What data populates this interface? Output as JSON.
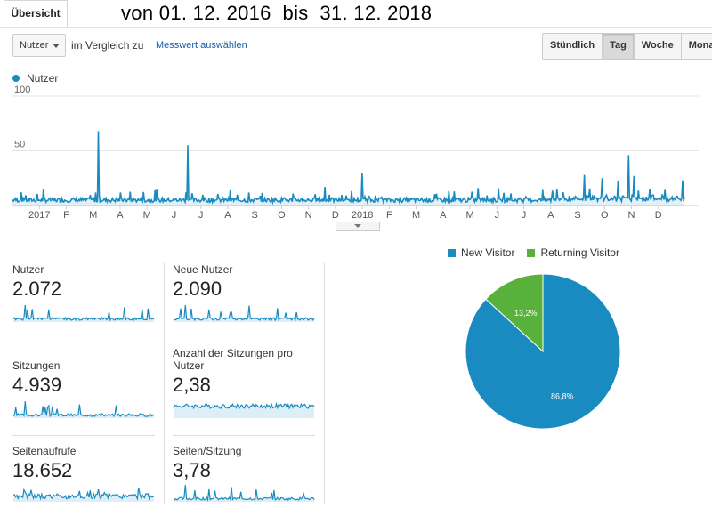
{
  "tab": {
    "label": "Übersicht"
  },
  "range_title": "von 01. 12. 2016  bis  31. 12. 2018",
  "controls": {
    "metric_select": "Nutzer",
    "compare_label": "im Vergleich zu",
    "choose_metric_link": "Messwert auswählen",
    "periods": [
      "Stündlich",
      "Tag",
      "Woche",
      "Monat"
    ],
    "active_period": "Tag"
  },
  "colors": {
    "primary": "#1a8bc1",
    "secondary": "#57b13b"
  },
  "chart_data": [
    {
      "type": "line",
      "series": [
        {
          "name": "Nutzer"
        }
      ],
      "ylim": [
        0,
        100
      ],
      "yticks": [
        "100",
        "50"
      ],
      "xlabels": [
        "2017",
        "F",
        "M",
        "A",
        "M",
        "J",
        "J",
        "A",
        "S",
        "O",
        "N",
        "D",
        "2018",
        "F",
        "M",
        "A",
        "M",
        "J",
        "J",
        "A",
        "S",
        "O",
        "N",
        "D"
      ],
      "baseline": 3,
      "spikes": [
        {
          "month": 3.2,
          "value": 68
        },
        {
          "month": 6.5,
          "value": 55
        },
        {
          "month": 6.45,
          "value": 12
        },
        {
          "month": 11.6,
          "value": 17
        },
        {
          "month": 13.0,
          "value": 30
        },
        {
          "month": 17.3,
          "value": 16
        },
        {
          "month": 21.25,
          "value": 28
        },
        {
          "month": 21.9,
          "value": 25
        },
        {
          "month": 22.5,
          "value": 22
        },
        {
          "month": 22.9,
          "value": 46
        },
        {
          "month": 23.1,
          "value": 27
        },
        {
          "month": 23.7,
          "value": 15
        },
        {
          "month": 24.9,
          "value": 23
        },
        {
          "month": 25.05,
          "value": 23
        },
        {
          "month": 25.3,
          "value": 24
        },
        {
          "month": 26.0,
          "value": 19
        },
        {
          "month": 27.9,
          "value": 29
        },
        {
          "month": 28.5,
          "value": 25
        },
        {
          "month": 29.1,
          "value": 32
        },
        {
          "month": 29.25,
          "value": 21
        }
      ]
    },
    {
      "type": "pie",
      "legend": [
        "New Visitor",
        "Returning Visitor"
      ],
      "values": [
        86.8,
        13.2
      ],
      "labels": [
        "86,8%",
        "13,2%"
      ]
    }
  ],
  "metrics": [
    {
      "label": "Nutzer",
      "value": "2.072"
    },
    {
      "label": "Neue Nutzer",
      "value": "2.090"
    },
    {
      "label": "Sitzungen",
      "value": "4.939"
    },
    {
      "label": "Anzahl der Sitzungen pro Nutzer",
      "value": "2,38"
    },
    {
      "label": "Seitenaufrufe",
      "value": "18.652"
    },
    {
      "label": "Seiten/Sitzung",
      "value": "3,78"
    }
  ]
}
